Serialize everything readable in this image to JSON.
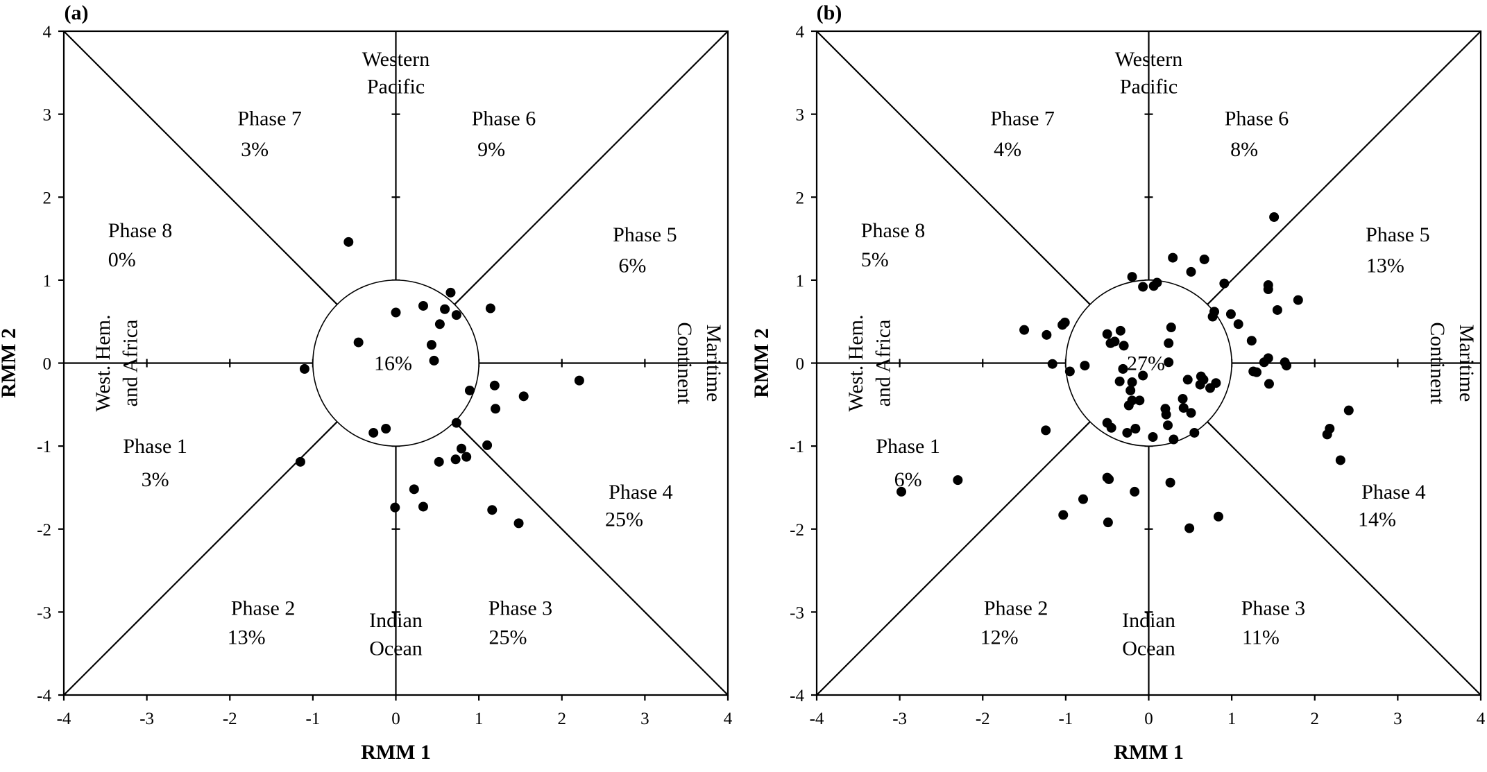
{
  "chart_data": [
    {
      "type": "scatter",
      "panel_label": "(a)",
      "xlabel": "RMM 1",
      "ylabel": "RMM 2",
      "xlim": [
        -4,
        4
      ],
      "ylim": [
        -4,
        4
      ],
      "xticks": [
        -4,
        -3,
        -2,
        -1,
        0,
        1,
        2,
        3,
        4
      ],
      "yticks": [
        -4,
        -3,
        -2,
        -1,
        0,
        1,
        2,
        3,
        4
      ],
      "regions": [
        "Western Pacific",
        "Indian Ocean",
        "West. Hem. and Africa",
        "Maritime Continent"
      ],
      "phases": [
        {
          "name": "Phase 1",
          "pct": "3%"
        },
        {
          "name": "Phase 2",
          "pct": "13%"
        },
        {
          "name": "Phase 3",
          "pct": "25%"
        },
        {
          "name": "Phase 4",
          "pct": "25%"
        },
        {
          "name": "Phase 5",
          "pct": "6%"
        },
        {
          "name": "Phase 6",
          "pct": "9%"
        },
        {
          "name": "Phase 7",
          "pct": "3%"
        },
        {
          "name": "Phase 8",
          "pct": "0%"
        }
      ],
      "center_pct": "16%",
      "points": [
        [
          -0.57,
          1.46
        ],
        [
          0.0,
          0.61
        ],
        [
          -0.45,
          0.25
        ],
        [
          0.33,
          0.69
        ],
        [
          0.59,
          0.65
        ],
        [
          0.66,
          0.85
        ],
        [
          0.73,
          0.58
        ],
        [
          0.53,
          0.47
        ],
        [
          1.14,
          0.66
        ],
        [
          0.43,
          0.22
        ],
        [
          0.46,
          0.03
        ],
        [
          -1.1,
          -0.07
        ],
        [
          0.89,
          -0.33
        ],
        [
          1.19,
          -0.27
        ],
        [
          1.54,
          -0.4
        ],
        [
          2.21,
          -0.21
        ],
        [
          1.2,
          -0.55
        ],
        [
          0.73,
          -0.72
        ],
        [
          0.79,
          -1.03
        ],
        [
          1.1,
          -0.99
        ],
        [
          0.85,
          -1.13
        ],
        [
          0.72,
          -1.16
        ],
        [
          0.52,
          -1.19
        ],
        [
          -0.12,
          -0.79
        ],
        [
          -0.27,
          -0.84
        ],
        [
          -1.15,
          -1.19
        ],
        [
          0.22,
          -1.52
        ],
        [
          0.33,
          -1.73
        ],
        [
          -0.01,
          -1.74
        ],
        [
          1.16,
          -1.77
        ],
        [
          1.48,
          -1.93
        ]
      ]
    },
    {
      "type": "scatter",
      "panel_label": "(b)",
      "xlabel": "RMM 1",
      "ylabel": "RMM 2",
      "xlim": [
        -4,
        4
      ],
      "ylim": [
        -4,
        4
      ],
      "xticks": [
        -4,
        -3,
        -2,
        -1,
        0,
        1,
        2,
        3,
        4
      ],
      "yticks": [
        -4,
        -3,
        -2,
        -1,
        0,
        1,
        2,
        3,
        4
      ],
      "regions": [
        "Western Pacific",
        "Indian Ocean",
        "West. Hem. and Africa",
        "Maritime Continent"
      ],
      "phases": [
        {
          "name": "Phase 1",
          "pct": "6%"
        },
        {
          "name": "Phase 2",
          "pct": "12%"
        },
        {
          "name": "Phase 3",
          "pct": "11%"
        },
        {
          "name": "Phase 4",
          "pct": "14%"
        },
        {
          "name": "Phase 5",
          "pct": "13%"
        },
        {
          "name": "Phase 6",
          "pct": "8%"
        },
        {
          "name": "Phase 7",
          "pct": "4%"
        },
        {
          "name": "Phase 8",
          "pct": "5%"
        }
      ],
      "center_pct": "27%",
      "points": [
        [
          1.51,
          1.76
        ],
        [
          0.29,
          1.27
        ],
        [
          0.51,
          1.1
        ],
        [
          0.67,
          1.25
        ],
        [
          -0.2,
          1.04
        ],
        [
          -0.07,
          0.92
        ],
        [
          0.06,
          0.93
        ],
        [
          0.1,
          0.97
        ],
        [
          0.91,
          0.96
        ],
        [
          1.44,
          0.94
        ],
        [
          1.44,
          0.89
        ],
        [
          1.8,
          0.76
        ],
        [
          0.99,
          0.59
        ],
        [
          0.79,
          0.62
        ],
        [
          0.77,
          0.56
        ],
        [
          1.08,
          0.47
        ],
        [
          1.55,
          0.64
        ],
        [
          -1.01,
          0.49
        ],
        [
          -1.04,
          0.46
        ],
        [
          -1.5,
          0.4
        ],
        [
          -1.23,
          0.34
        ],
        [
          -0.5,
          0.35
        ],
        [
          -0.34,
          0.39
        ],
        [
          -0.41,
          0.26
        ],
        [
          -0.46,
          0.24
        ],
        [
          -0.3,
          0.21
        ],
        [
          0.27,
          0.43
        ],
        [
          0.24,
          0.24
        ],
        [
          0.24,
          0.01
        ],
        [
          1.24,
          0.27
        ],
        [
          1.39,
          0.01
        ],
        [
          1.44,
          0.06
        ],
        [
          1.64,
          0.01
        ],
        [
          1.66,
          -0.03
        ],
        [
          1.3,
          -0.11
        ],
        [
          1.45,
          -0.25
        ],
        [
          1.26,
          -0.1
        ],
        [
          -1.16,
          -0.01
        ],
        [
          -0.77,
          -0.03
        ],
        [
          -0.95,
          -0.1
        ],
        [
          -0.31,
          -0.07
        ],
        [
          -0.35,
          -0.22
        ],
        [
          -0.2,
          -0.23
        ],
        [
          -0.22,
          -0.33
        ],
        [
          -0.07,
          -0.15
        ],
        [
          0.63,
          -0.16
        ],
        [
          0.66,
          -0.2
        ],
        [
          0.74,
          -0.3
        ],
        [
          0.81,
          -0.24
        ],
        [
          0.62,
          -0.26
        ],
        [
          0.47,
          -0.2
        ],
        [
          0.41,
          -0.43
        ],
        [
          0.42,
          -0.54
        ],
        [
          0.51,
          -0.6
        ],
        [
          0.21,
          -0.62
        ],
        [
          -0.24,
          -0.51
        ],
        [
          -0.2,
          -0.45
        ],
        [
          -0.11,
          -0.45
        ],
        [
          -0.5,
          -0.72
        ],
        [
          -0.45,
          -0.78
        ],
        [
          -0.26,
          -0.84
        ],
        [
          -0.16,
          -0.79
        ],
        [
          0.23,
          -0.75
        ],
        [
          0.2,
          -0.55
        ],
        [
          0.55,
          -0.84
        ],
        [
          0.05,
          -0.89
        ],
        [
          0.3,
          -0.92
        ],
        [
          -1.24,
          -0.81
        ],
        [
          -2.98,
          -1.55
        ],
        [
          -2.3,
          -1.41
        ],
        [
          -0.5,
          -1.38
        ],
        [
          -0.48,
          -1.4
        ],
        [
          -0.79,
          -1.64
        ],
        [
          -0.17,
          -1.55
        ],
        [
          0.26,
          -1.44
        ],
        [
          0.84,
          -1.85
        ],
        [
          0.49,
          -1.99
        ],
        [
          -0.49,
          -1.92
        ],
        [
          -1.03,
          -1.83
        ],
        [
          2.15,
          -0.86
        ],
        [
          2.18,
          -0.79
        ],
        [
          2.41,
          -0.57
        ],
        [
          2.31,
          -1.17
        ]
      ]
    }
  ]
}
